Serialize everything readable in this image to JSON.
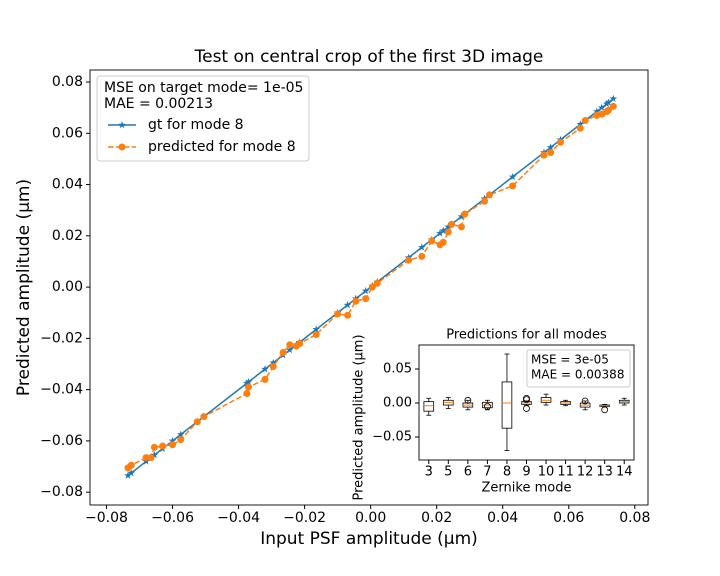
{
  "chart_data": [
    {
      "type": "line",
      "title": "Test on central crop of the first 3D image",
      "x_label": "Input PSF amplitude (μm)",
      "y_label": "Predicted amplitude (μm)",
      "annotations": [
        "MSE on target mode= 1e-05",
        "MAE = 0.00213"
      ],
      "x": [
        -0.0735,
        -0.0725,
        -0.068,
        -0.0665,
        -0.0655,
        -0.063,
        -0.06,
        -0.0575,
        -0.0525,
        -0.0505,
        -0.0375,
        -0.037,
        -0.032,
        -0.0295,
        -0.0265,
        -0.0245,
        -0.0225,
        -0.0215,
        -0.0165,
        -0.01,
        -0.007,
        -0.0045,
        -0.0015,
        0.0005,
        0.002,
        0.0115,
        0.0155,
        0.0185,
        0.021,
        0.022,
        0.0235,
        0.0245,
        0.0275,
        0.0285,
        0.0345,
        0.036,
        0.043,
        0.0525,
        0.0545,
        0.0575,
        0.0635,
        0.065,
        0.0685,
        0.07,
        0.0715,
        0.072,
        0.0735
      ],
      "series": [
        {
          "name": "gt for mode 8",
          "color": "#1f77b4",
          "marker": "star",
          "linestyle": "solid",
          "values": [
            -0.0735,
            -0.0725,
            -0.068,
            -0.0665,
            -0.0655,
            -0.063,
            -0.06,
            -0.0575,
            -0.0525,
            -0.0505,
            -0.0375,
            -0.037,
            -0.032,
            -0.0295,
            -0.0265,
            -0.0245,
            -0.0225,
            -0.0215,
            -0.0165,
            -0.01,
            -0.007,
            -0.0045,
            -0.0015,
            0.0005,
            0.002,
            0.0115,
            0.0155,
            0.0185,
            0.021,
            0.022,
            0.0235,
            0.0245,
            0.0275,
            0.0285,
            0.0345,
            0.036,
            0.043,
            0.0525,
            0.0545,
            0.0575,
            0.0635,
            0.065,
            0.0685,
            0.07,
            0.0715,
            0.072,
            0.0735
          ]
        },
        {
          "name": "predicted for mode 8",
          "color": "#ff7f0e",
          "marker": "circle",
          "linestyle": "dashed",
          "values": [
            -0.0705,
            -0.0695,
            -0.0665,
            -0.0665,
            -0.0625,
            -0.062,
            -0.0615,
            -0.0595,
            -0.0525,
            -0.0505,
            -0.0415,
            -0.039,
            -0.036,
            -0.031,
            -0.0255,
            -0.0225,
            -0.023,
            -0.022,
            -0.0185,
            -0.0105,
            -0.011,
            -0.0055,
            -0.0045,
            0.0,
            0.0015,
            0.0105,
            0.012,
            0.018,
            0.0165,
            0.0175,
            0.0215,
            0.0245,
            0.0235,
            0.0285,
            0.0335,
            0.036,
            0.0395,
            0.0515,
            0.0525,
            0.0565,
            0.062,
            0.065,
            0.067,
            0.0675,
            0.0685,
            0.069,
            0.0705
          ]
        }
      ],
      "xlim": [
        -0.085,
        0.084
      ],
      "ylim": [
        -0.085,
        0.0847
      ],
      "xticks": [
        {
          "value": -0.08,
          "label": "−0.08"
        },
        {
          "value": -0.06,
          "label": "−0.06"
        },
        {
          "value": -0.04,
          "label": "−0.04"
        },
        {
          "value": -0.02,
          "label": "−0.02"
        },
        {
          "value": 0,
          "label": "0.00"
        },
        0.02,
        0.04,
        0.06,
        0.08
      ],
      "yticks": [
        {
          "value": -0.08,
          "label": "−0.08"
        },
        {
          "value": -0.06,
          "label": "−0.06"
        },
        {
          "value": -0.04,
          "label": "−0.04"
        },
        {
          "value": -0.02,
          "label": "−0.02"
        },
        {
          "value": 0,
          "label": "0.00"
        },
        0.02,
        0.04,
        0.06,
        0.08
      ],
      "legend": "upper left"
    },
    {
      "type": "box",
      "title": "Predictions for all modes",
      "x_label": "Zernike mode",
      "y_label": "Predicted amplitude (μm)",
      "annotations": [
        "MSE = 3e-05",
        "MAE = 0.00388"
      ],
      "categories": [
        "3",
        "5",
        "6",
        "7",
        "8",
        "9",
        "10",
        "11",
        "12",
        "13",
        "14"
      ],
      "color": "#ff7f0e",
      "boxes": [
        {
          "low": -0.018,
          "q1": -0.012,
          "median": -0.004,
          "q3": 0.002,
          "high": 0.007,
          "outliers": []
        },
        {
          "low": -0.008,
          "q1": -0.003,
          "median": 0.001,
          "q3": 0.004,
          "high": 0.008,
          "outliers": []
        },
        {
          "low": -0.01,
          "q1": -0.006,
          "median": -0.003,
          "q3": 0.0,
          "high": 0.004,
          "outliers": [
            0.004
          ]
        },
        {
          "low": -0.01,
          "q1": -0.007,
          "median": -0.003,
          "q3": 0.001,
          "high": 0.004,
          "outliers": [
            -0.005
          ]
        },
        {
          "low": -0.07,
          "q1": -0.037,
          "median": 0.0,
          "q3": 0.031,
          "high": 0.072,
          "outliers": []
        },
        {
          "low": -0.004,
          "q1": -0.002,
          "median": 0.0,
          "q3": 0.002,
          "high": 0.003,
          "outliers": [
            -0.008,
            0.005,
            0.007
          ]
        },
        {
          "low": -0.003,
          "q1": 0.001,
          "median": 0.004,
          "q3": 0.008,
          "high": 0.013,
          "outliers": []
        },
        {
          "low": -0.004,
          "q1": -0.002,
          "median": 0.0,
          "q3": 0.002,
          "high": 0.004,
          "outliers": []
        },
        {
          "low": -0.01,
          "q1": -0.006,
          "median": -0.003,
          "q3": 0.0,
          "high": 0.003,
          "outliers": [
            0.003
          ]
        },
        {
          "low": -0.006,
          "q1": -0.005,
          "median": -0.004,
          "q3": -0.003,
          "high": -0.002,
          "outliers": [
            -0.01
          ]
        },
        {
          "low": -0.003,
          "q1": 0.0,
          "median": 0.002,
          "q3": 0.004,
          "high": 0.007,
          "outliers": []
        }
      ],
      "ylim": [
        -0.0838,
        0.0853
      ],
      "yticks": [
        {
          "value": -0.05,
          "label": "−0.05"
        },
        {
          "value": 0,
          "label": "0.00"
        },
        0.05
      ]
    }
  ]
}
